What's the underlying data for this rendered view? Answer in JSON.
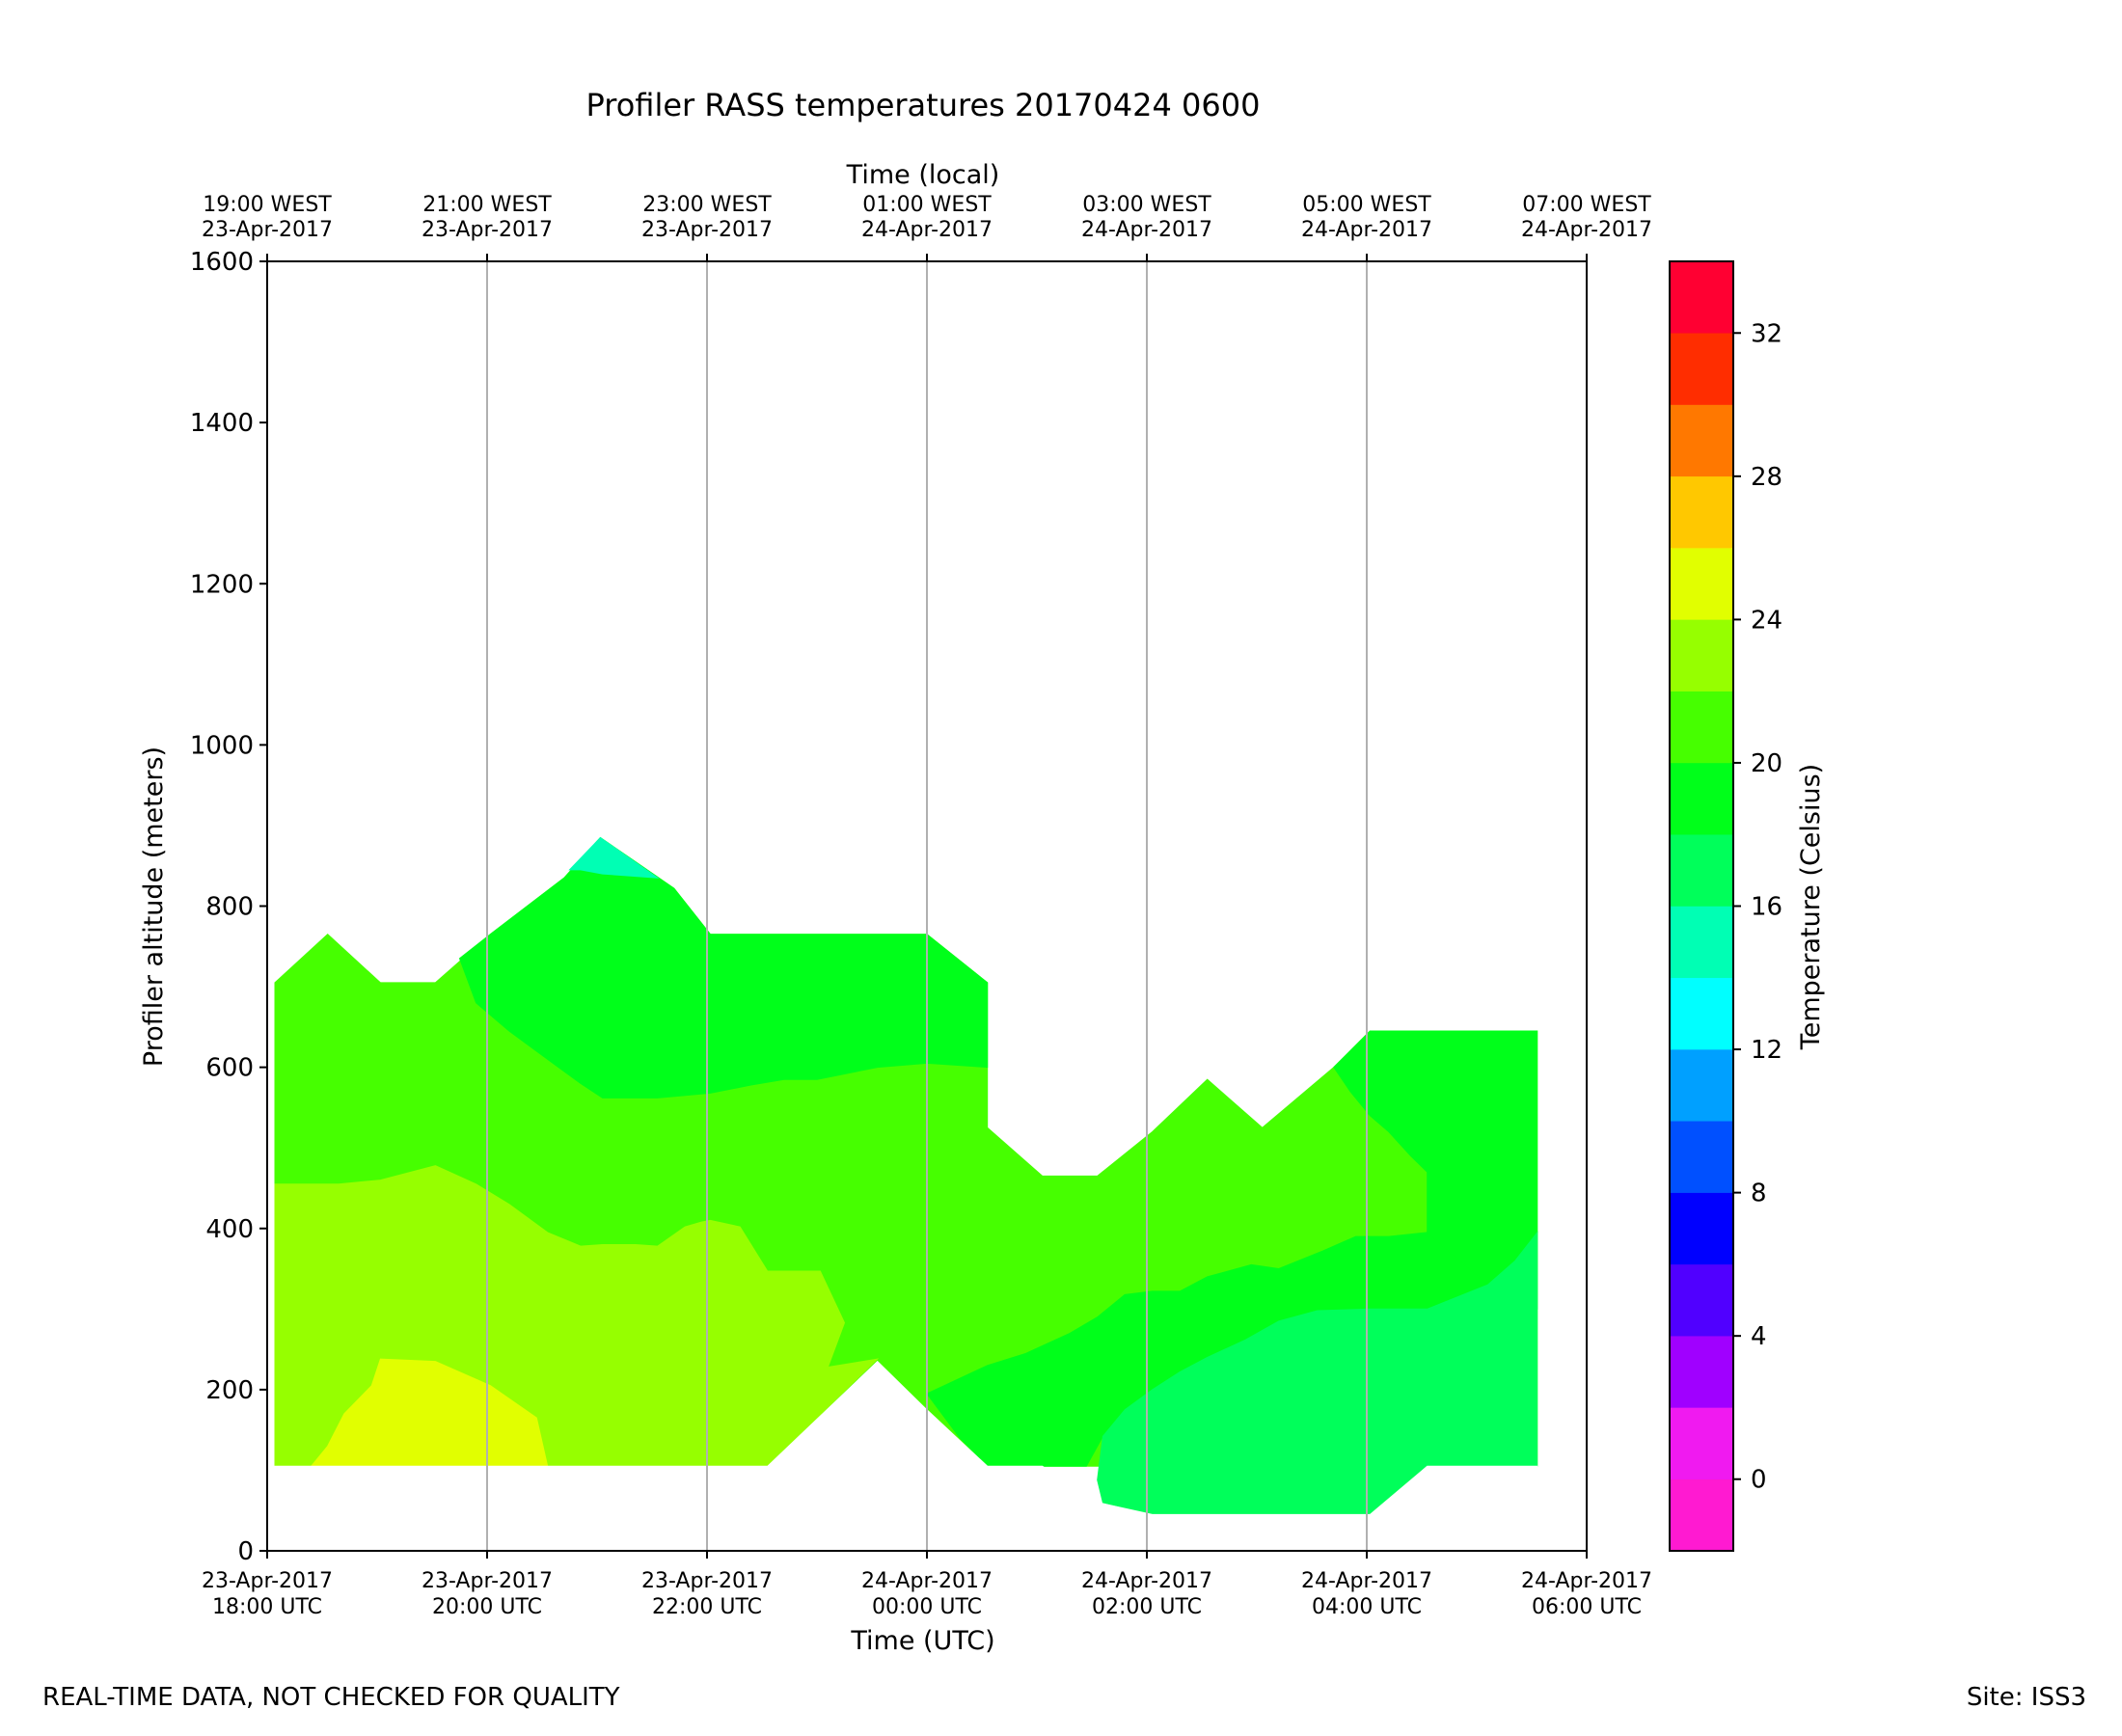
{
  "chart_data": {
    "type": "contour",
    "title": "Profiler RASS temperatures 20170424 0600",
    "xlabel": "Time (UTC)",
    "xlabel_top": "Time (local)",
    "ylabel": "Profiler altitude (meters)",
    "colorbar_label": "Temperature (Celsius)",
    "xlim_hours_utc": [
      0,
      12
    ],
    "ylim": [
      0,
      1600
    ],
    "yticks": [
      0,
      200,
      400,
      600,
      800,
      1000,
      1200,
      1400,
      1600
    ],
    "xticks": [
      {
        "hours": 0,
        "utc": [
          "23-Apr-2017",
          "18:00 UTC"
        ],
        "local": [
          "19:00 WEST",
          "23-Apr-2017"
        ]
      },
      {
        "hours": 2,
        "utc": [
          "23-Apr-2017",
          "20:00 UTC"
        ],
        "local": [
          "21:00 WEST",
          "23-Apr-2017"
        ]
      },
      {
        "hours": 4,
        "utc": [
          "23-Apr-2017",
          "22:00 UTC"
        ],
        "local": [
          "23:00 WEST",
          "23-Apr-2017"
        ]
      },
      {
        "hours": 6,
        "utc": [
          "24-Apr-2017",
          "00:00 UTC"
        ],
        "local": [
          "01:00 WEST",
          "24-Apr-2017"
        ]
      },
      {
        "hours": 8,
        "utc": [
          "24-Apr-2017",
          "02:00 UTC"
        ],
        "local": [
          "03:00 WEST",
          "24-Apr-2017"
        ]
      },
      {
        "hours": 10,
        "utc": [
          "24-Apr-2017",
          "04:00 UTC"
        ],
        "local": [
          "05:00 WEST",
          "24-Apr-2017"
        ]
      },
      {
        "hours": 12,
        "utc": [
          "24-Apr-2017",
          "06:00 UTC"
        ],
        "local": [
          "07:00 WEST",
          "24-Apr-2017"
        ]
      }
    ],
    "colorbar": {
      "range": [
        -2,
        34
      ],
      "ticks": [
        0,
        4,
        8,
        12,
        16,
        20,
        24,
        28,
        32
      ],
      "bands": [
        {
          "from": -2,
          "to": 0,
          "color": "#ff1ad1"
        },
        {
          "from": 0,
          "to": 2,
          "color": "#f01af0"
        },
        {
          "from": 2,
          "to": 4,
          "color": "#a000ff"
        },
        {
          "from": 4,
          "to": 6,
          "color": "#5000ff"
        },
        {
          "from": 6,
          "to": 8,
          "color": "#0000ff"
        },
        {
          "from": 8,
          "to": 10,
          "color": "#0050ff"
        },
        {
          "from": 10,
          "to": 12,
          "color": "#00a0ff"
        },
        {
          "from": 12,
          "to": 14,
          "color": "#00ffff"
        },
        {
          "from": 14,
          "to": 16,
          "color": "#00ffb4"
        },
        {
          "from": 16,
          "to": 18,
          "color": "#00ff5a"
        },
        {
          "from": 18,
          "to": 20,
          "color": "#00ff1a"
        },
        {
          "from": 20,
          "to": 22,
          "color": "#46ff00"
        },
        {
          "from": 22,
          "to": 24,
          "color": "#96ff00"
        },
        {
          "from": 24,
          "to": 26,
          "color": "#e1ff00"
        },
        {
          "from": 26,
          "to": 28,
          "color": "#ffc800"
        },
        {
          "from": 28,
          "to": 30,
          "color": "#ff7800"
        },
        {
          "from": 30,
          "to": 32,
          "color": "#ff2d00"
        },
        {
          "from": 32,
          "to": 34,
          "color": "#ff0032"
        }
      ]
    },
    "regions": [
      {
        "name": "region-20-22",
        "range": "20-22",
        "color": "#46ff00",
        "points": [
          [
            0.07,
            705
          ],
          [
            0.55,
            765
          ],
          [
            1.03,
            705
          ],
          [
            1.53,
            705
          ],
          [
            2.03,
            765
          ],
          [
            2.7,
            835
          ],
          [
            3.03,
            885
          ],
          [
            3.7,
            822
          ],
          [
            4.03,
            765
          ],
          [
            5.0,
            765
          ],
          [
            6.0,
            765
          ],
          [
            6.55,
            705
          ],
          [
            6.55,
            525
          ],
          [
            7.05,
            465
          ],
          [
            7.55,
            465
          ],
          [
            8.05,
            520
          ],
          [
            8.55,
            585
          ],
          [
            9.05,
            525
          ],
          [
            9.7,
            600
          ],
          [
            10.03,
            645
          ],
          [
            11.55,
            645
          ],
          [
            11.55,
            105
          ],
          [
            7.05,
            105
          ],
          [
            6.0,
            105
          ],
          [
            0.07,
            105
          ]
        ]
      },
      {
        "name": "region-18-20",
        "range": "18-20",
        "color": "#00ff1a",
        "points": [
          [
            1.75,
            735
          ],
          [
            2.03,
            765
          ],
          [
            2.7,
            835
          ],
          [
            3.03,
            885
          ],
          [
            3.7,
            822
          ],
          [
            4.03,
            765
          ],
          [
            5.0,
            765
          ],
          [
            6.0,
            765
          ],
          [
            6.55,
            705
          ],
          [
            6.55,
            600
          ],
          [
            6.0,
            605
          ],
          [
            5.55,
            600
          ],
          [
            5.0,
            585
          ],
          [
            4.7,
            585
          ],
          [
            4.4,
            578
          ],
          [
            4.03,
            568
          ],
          [
            3.55,
            562
          ],
          [
            3.05,
            562
          ],
          [
            2.85,
            580
          ],
          [
            2.55,
            610
          ],
          [
            2.2,
            645
          ],
          [
            1.9,
            680
          ]
        ]
      },
      {
        "name": "region-18-20-east",
        "range": "18-20",
        "color": "#00ff1a",
        "points": [
          [
            9.7,
            600
          ],
          [
            10.03,
            645
          ],
          [
            11.55,
            645
          ],
          [
            11.55,
            395
          ],
          [
            11.35,
            360
          ],
          [
            11.1,
            330
          ],
          [
            10.55,
            300
          ],
          [
            10.55,
            395
          ],
          [
            10.55,
            470
          ],
          [
            10.4,
            490
          ],
          [
            10.2,
            520
          ],
          [
            10.03,
            540
          ],
          [
            9.85,
            570
          ]
        ]
      },
      {
        "name": "region-18-20-low",
        "range": "18-20",
        "color": "#00ff1a",
        "points": [
          [
            6.0,
            195
          ],
          [
            6.55,
            230
          ],
          [
            6.9,
            245
          ],
          [
            7.3,
            270
          ],
          [
            7.55,
            290
          ],
          [
            7.8,
            318
          ],
          [
            8.05,
            322
          ],
          [
            8.3,
            322
          ],
          [
            8.55,
            340
          ],
          [
            8.95,
            355
          ],
          [
            9.2,
            350
          ],
          [
            9.6,
            372
          ],
          [
            9.9,
            390
          ],
          [
            10.2,
            390
          ],
          [
            10.55,
            395
          ],
          [
            11.1,
            330
          ],
          [
            11.35,
            360
          ],
          [
            11.55,
            395
          ],
          [
            11.55,
            300
          ],
          [
            10.55,
            300
          ],
          [
            10.03,
            300
          ],
          [
            9.55,
            298
          ],
          [
            9.2,
            285
          ],
          [
            8.9,
            262
          ],
          [
            8.55,
            240
          ],
          [
            8.3,
            222
          ],
          [
            8.05,
            200
          ],
          [
            7.8,
            175
          ],
          [
            7.6,
            142
          ],
          [
            7.45,
            105
          ],
          [
            7.05,
            105
          ],
          [
            6.55,
            105
          ],
          [
            6.3,
            140
          ]
        ]
      },
      {
        "name": "region-22-24",
        "range": "22-24",
        "color": "#96ff00",
        "points": [
          [
            0.07,
            455
          ],
          [
            0.65,
            455
          ],
          [
            1.03,
            460
          ],
          [
            1.53,
            478
          ],
          [
            1.9,
            455
          ],
          [
            2.2,
            430
          ],
          [
            2.55,
            395
          ],
          [
            2.85,
            378
          ],
          [
            3.05,
            380
          ],
          [
            3.35,
            380
          ],
          [
            3.55,
            378
          ],
          [
            3.8,
            402
          ],
          [
            3.95,
            408
          ],
          [
            4.03,
            410
          ],
          [
            4.3,
            402
          ],
          [
            4.55,
            347
          ],
          [
            5.03,
            347
          ],
          [
            5.25,
            283
          ],
          [
            5.1,
            228
          ],
          [
            5.55,
            238
          ],
          [
            5.0,
            165
          ],
          [
            4.55,
            105
          ],
          [
            0.07,
            105
          ]
        ]
      },
      {
        "name": "region-24-26",
        "range": "24-26",
        "color": "#e1ff00",
        "points": [
          [
            0.4,
            105
          ],
          [
            0.55,
            130
          ],
          [
            0.7,
            170
          ],
          [
            0.95,
            205
          ],
          [
            1.03,
            238
          ],
          [
            1.53,
            235
          ],
          [
            2.03,
            205
          ],
          [
            2.45,
            165
          ],
          [
            2.55,
            105
          ]
        ]
      },
      {
        "name": "region-16-18",
        "range": "16-18",
        "color": "#00ff5a",
        "points": [
          [
            7.55,
            88
          ],
          [
            7.6,
            60
          ],
          [
            8.05,
            45
          ],
          [
            10.03,
            45
          ],
          [
            10.55,
            105
          ],
          [
            11.55,
            105
          ],
          [
            11.55,
            395
          ],
          [
            11.35,
            360
          ],
          [
            11.1,
            330
          ],
          [
            10.55,
            300
          ],
          [
            10.03,
            300
          ],
          [
            9.55,
            298
          ],
          [
            9.2,
            285
          ],
          [
            8.9,
            262
          ],
          [
            8.55,
            240
          ],
          [
            8.3,
            222
          ],
          [
            8.05,
            200
          ],
          [
            7.8,
            175
          ],
          [
            7.6,
            142
          ]
        ]
      },
      {
        "name": "region-14-16",
        "range": "14-16",
        "color": "#00ffb4",
        "points": [
          [
            2.75,
            845
          ],
          [
            3.03,
            885
          ],
          [
            3.55,
            835
          ],
          [
            3.05,
            840
          ],
          [
            2.85,
            845
          ]
        ]
      }
    ],
    "gaps": [
      {
        "name": "gap-left-bottom",
        "points": [
          [
            0.07,
            0
          ],
          [
            0.07,
            105
          ],
          [
            4.55,
            105
          ],
          [
            5.55,
            235
          ],
          [
            6.0,
            175
          ],
          [
            6.55,
            105
          ],
          [
            7.05,
            105
          ],
          [
            7.55,
            60
          ],
          [
            8.05,
            45
          ],
          [
            10.03,
            45
          ],
          [
            10.55,
            105
          ],
          [
            11.55,
            105
          ],
          [
            11.55,
            0
          ]
        ]
      }
    ],
    "grid_x_hours": [
      2,
      4,
      6,
      8,
      10
    ]
  },
  "footer": {
    "left": "REAL-TIME DATA, NOT CHECKED FOR QUALITY",
    "right": "Site: ISS3"
  }
}
